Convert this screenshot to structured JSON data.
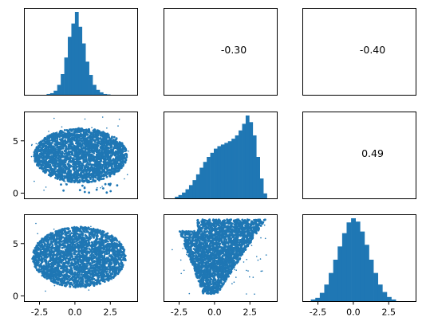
{
  "chart_data": {
    "type": "pair-grid",
    "variables": 3,
    "color": "#1f77b4",
    "x_ticks_bottom": [
      "-2.5",
      "0.0",
      "2.5"
    ],
    "x_tick_values": [
      -2.5,
      0.0,
      2.5
    ],
    "y_ticks_left": [
      "0",
      "5"
    ],
    "y_tick_values": [
      0,
      5
    ],
    "x_range": [
      -3.6,
      4.4
    ],
    "y_range": [
      -0.5,
      7.8
    ],
    "correlations": [
      {
        "row": 0,
        "col": 1,
        "label": "-0.30"
      },
      {
        "row": 0,
        "col": 2,
        "label": "-0.40"
      },
      {
        "row": 1,
        "col": 2,
        "label": "0.49"
      }
    ],
    "histograms": [
      {
        "row": 0,
        "col": 0,
        "type": "histogram",
        "bin_range": [
          -2.0,
          2.5
        ],
        "counts": [
          1,
          2,
          5,
          12,
          25,
          45,
          70,
          86,
          100,
          82,
          62,
          40,
          24,
          12,
          6,
          3,
          1,
          0.5
        ]
      },
      {
        "row": 1,
        "col": 1,
        "type": "histogram",
        "bin_range": [
          -2.8,
          3.7
        ],
        "counts": [
          2,
          4,
          7,
          11,
          16,
          22,
          29,
          37,
          44,
          50,
          55,
          60,
          63,
          65,
          67,
          69,
          72,
          76,
          82,
          90,
          100,
          92,
          76,
          50,
          24,
          6
        ]
      },
      {
        "row": 2,
        "col": 2,
        "type": "histogram",
        "bin_range": [
          -3.0,
          3.0
        ],
        "counts": [
          2,
          4,
          10,
          20,
          34,
          50,
          66,
          82,
          95,
          100,
          96,
          84,
          68,
          50,
          34,
          20,
          11,
          5,
          2
        ]
      }
    ],
    "scatters": [
      {
        "row": 1,
        "col": 0,
        "shape": "blob_upper",
        "x_range": [
          -3.1,
          3.8
        ],
        "y_range": [
          0.0,
          7.5
        ],
        "center": [
          0.4,
          3.6
        ]
      },
      {
        "row": 2,
        "col": 0,
        "shape": "blob_lower",
        "x_range": [
          -3.1,
          3.8
        ],
        "y_range": [
          0.0,
          7.4
        ],
        "center": [
          0.3,
          3.7
        ]
      },
      {
        "row": 2,
        "col": 1,
        "shape": "wedge",
        "x_range": [
          -3.0,
          3.7
        ],
        "y_range": [
          0.0,
          7.3
        ],
        "center": [
          0.8,
          4.2
        ]
      }
    ]
  }
}
